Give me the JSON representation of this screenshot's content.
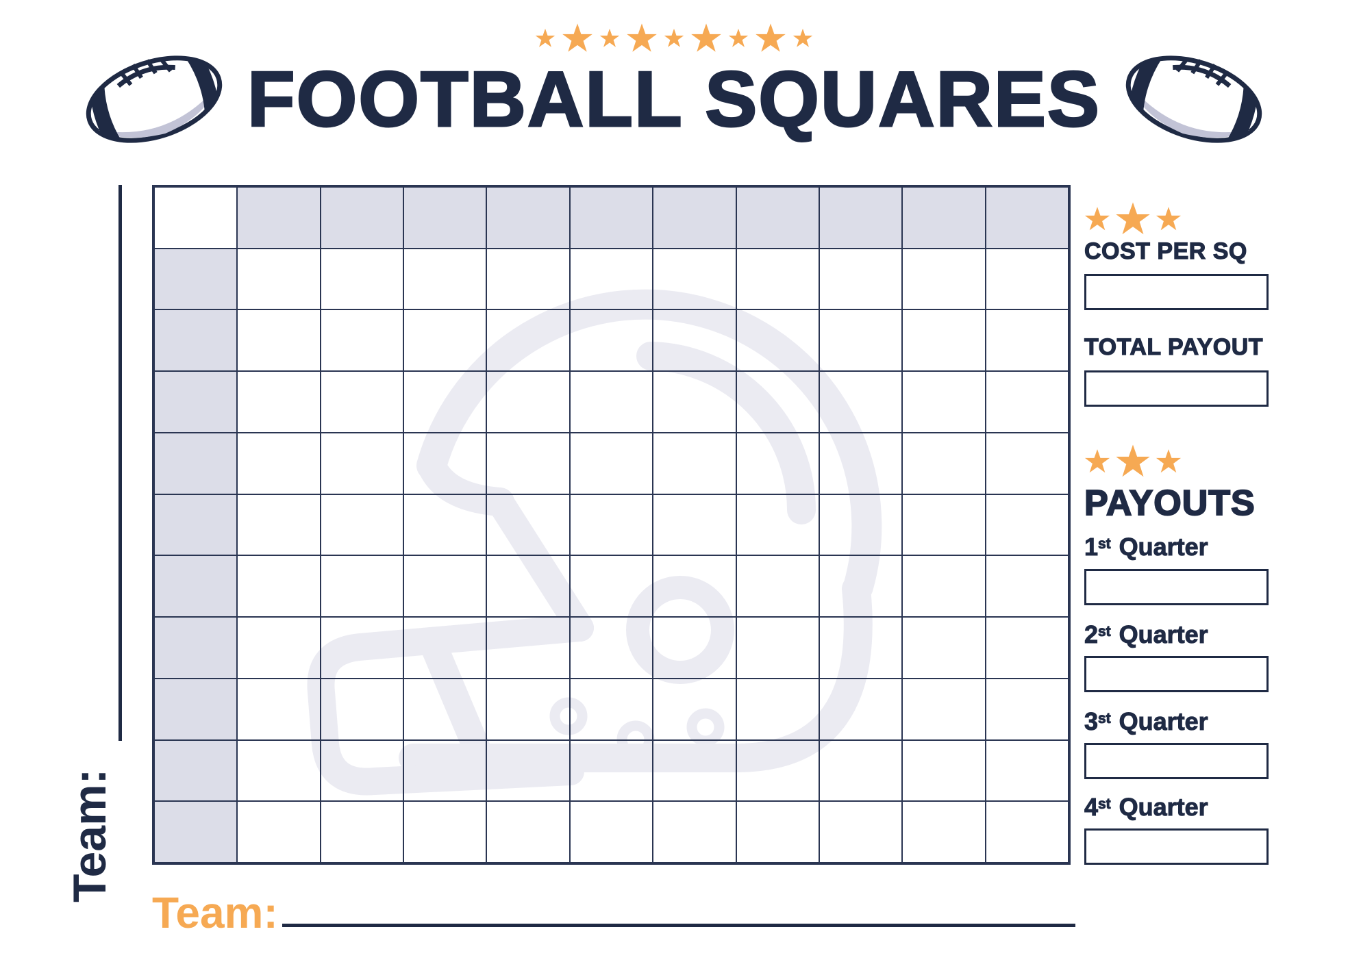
{
  "colors": {
    "navy": "#1f2a44",
    "grid_line": "#2a3552",
    "orange": "#f6a953",
    "cell_shade": "#dcdde8",
    "watermark": "#ebebf2",
    "football_gray": "#c2c3d6"
  },
  "header": {
    "stars": {
      "sizes": [
        30,
        46,
        30,
        46,
        30,
        46,
        30,
        46,
        30
      ],
      "color": "#f6a953"
    },
    "title": "FOOTBALL SQUARES"
  },
  "grid": {
    "rows": 11,
    "cols": 11,
    "team_label": "Team:"
  },
  "sidebar": {
    "stars_top": {
      "sizes": [
        38,
        52,
        38
      ],
      "color": "#f6a953"
    },
    "stars_payouts": {
      "sizes": [
        38,
        52,
        38
      ],
      "color": "#f6a953"
    },
    "cost_per_sq": {
      "label": "COST PER SQ",
      "value": ""
    },
    "total_payout": {
      "label": "TOTAL PAYOUT",
      "value": ""
    },
    "payouts": {
      "title": "PAYOUTS",
      "quarters": [
        {
          "num": "1",
          "suffix": "st",
          "word": "Quarter",
          "value": ""
        },
        {
          "num": "2",
          "suffix": "st",
          "word": "Quarter",
          "value": ""
        },
        {
          "num": "3",
          "suffix": "st",
          "word": "Quarter",
          "value": ""
        },
        {
          "num": "4",
          "suffix": "st",
          "word": "Quarter",
          "value": ""
        }
      ]
    }
  },
  "footer": {
    "team_label": "Team:",
    "team_value": ""
  }
}
